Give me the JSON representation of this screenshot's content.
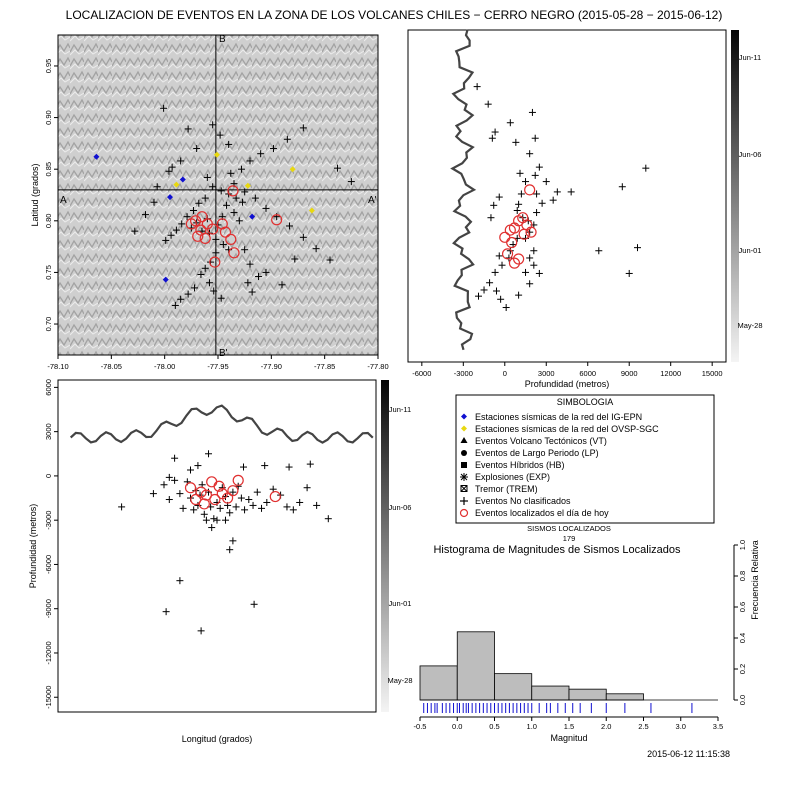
{
  "title": "LOCALIZACION DE EVENTOS EN LA ZONA DE LOS VOLCANES CHILES − CERRO NEGRO (2015-05-28 − 2015-06-12)",
  "timestamp": "2015-06-12 11:15:38",
  "colors": {
    "ig_station": "#1010d0",
    "ovsp_station": "#e8d810",
    "event": "#000000",
    "today": "#e03030",
    "profile": "#444444",
    "hist_bar": "#bdbdbd",
    "rug": "#1010d0"
  },
  "chart_data": [
    {
      "type": "scatter",
      "id": "map",
      "xlim": [
        -78.1,
        -77.8
      ],
      "ylim": [
        0.67,
        0.98
      ],
      "xticks": [
        "-78.10",
        "-78.05",
        "-78.00",
        "-77.95",
        "-77.90",
        "-77.85",
        "-77.80"
      ],
      "yticks": [
        "0.70",
        "0.75",
        "0.80",
        "0.85",
        "0.90",
        "0.95"
      ],
      "ylabel": "Latitud (grados)",
      "section_labels": {
        "A": "A",
        "A2": "A'",
        "B": "B",
        "B2": "B'"
      },
      "section_lines": {
        "lat": 0.83,
        "lon": -77.952
      },
      "ig_stations": [
        [
          -78.064,
          0.862
        ],
        [
          -77.995,
          0.823
        ],
        [
          -77.983,
          0.84
        ],
        [
          -77.918,
          0.804
        ],
        [
          -77.999,
          0.743
        ]
      ],
      "ovsp_stations": [
        [
          -77.951,
          0.864
        ],
        [
          -77.922,
          0.834
        ],
        [
          -77.88,
          0.85
        ],
        [
          -77.862,
          0.81
        ],
        [
          -77.989,
          0.835
        ]
      ],
      "events": [
        [
          -78.001,
          0.909
        ],
        [
          -77.978,
          0.889
        ],
        [
          -77.97,
          0.87
        ],
        [
          -77.96,
          0.842
        ],
        [
          -77.955,
          0.833
        ],
        [
          -77.947,
          0.829
        ],
        [
          -77.94,
          0.826
        ],
        [
          -77.933,
          0.822
        ],
        [
          -77.927,
          0.818
        ],
        [
          -77.962,
          0.822
        ],
        [
          -77.968,
          0.817
        ],
        [
          -77.973,
          0.81
        ],
        [
          -77.979,
          0.804
        ],
        [
          -77.984,
          0.797
        ],
        [
          -77.989,
          0.791
        ],
        [
          -77.994,
          0.786
        ],
        [
          -77.999,
          0.781
        ],
        [
          -77.965,
          0.79
        ],
        [
          -77.958,
          0.788
        ],
        [
          -77.952,
          0.782
        ],
        [
          -77.945,
          0.777
        ],
        [
          -77.94,
          0.772
        ],
        [
          -77.952,
          0.769
        ],
        [
          -77.957,
          0.76
        ],
        [
          -77.962,
          0.754
        ],
        [
          -77.966,
          0.748
        ],
        [
          -77.958,
          0.74
        ],
        [
          -77.954,
          0.732
        ],
        [
          -77.947,
          0.725
        ],
        [
          -77.972,
          0.735
        ],
        [
          -77.978,
          0.729
        ],
        [
          -77.985,
          0.724
        ],
        [
          -77.99,
          0.718
        ],
        [
          -77.87,
          0.89
        ],
        [
          -77.885,
          0.879
        ],
        [
          -77.898,
          0.87
        ],
        [
          -77.91,
          0.865
        ],
        [
          -77.92,
          0.858
        ],
        [
          -77.928,
          0.85
        ],
        [
          -77.938,
          0.846
        ],
        [
          -77.935,
          0.836
        ],
        [
          -77.925,
          0.828
        ],
        [
          -77.915,
          0.822
        ],
        [
          -77.905,
          0.812
        ],
        [
          -77.895,
          0.804
        ],
        [
          -77.883,
          0.795
        ],
        [
          -77.87,
          0.784
        ],
        [
          -77.858,
          0.773
        ],
        [
          -77.845,
          0.762
        ],
        [
          -77.838,
          0.851
        ],
        [
          -77.825,
          0.838
        ],
        [
          -77.878,
          0.763
        ],
        [
          -77.89,
          0.738
        ],
        [
          -77.905,
          0.75
        ],
        [
          -77.92,
          0.758
        ],
        [
          -77.925,
          0.772
        ],
        [
          -78.01,
          0.818
        ],
        [
          -78.018,
          0.806
        ],
        [
          -78.028,
          0.79
        ],
        [
          -77.94,
          0.874
        ],
        [
          -77.948,
          0.883
        ],
        [
          -77.955,
          0.893
        ],
        [
          -77.985,
          0.858
        ],
        [
          -77.993,
          0.852
        ],
        [
          -77.996,
          0.848
        ],
        [
          -78.007,
          0.833
        ],
        [
          -77.93,
          0.8
        ],
        [
          -77.935,
          0.808
        ],
        [
          -77.942,
          0.815
        ],
        [
          -77.96,
          0.802
        ],
        [
          -77.97,
          0.798
        ],
        [
          -77.975,
          0.793
        ],
        [
          -77.95,
          0.796
        ],
        [
          -77.946,
          0.804
        ],
        [
          -77.912,
          0.746
        ],
        [
          -77.922,
          0.74
        ],
        [
          -77.918,
          0.731
        ]
      ],
      "today_events": [
        [
          -77.965,
          0.804
        ],
        [
          -77.96,
          0.797
        ],
        [
          -77.971,
          0.8
        ],
        [
          -77.966,
          0.791
        ],
        [
          -77.955,
          0.792
        ],
        [
          -77.969,
          0.785
        ],
        [
          -77.962,
          0.783
        ],
        [
          -77.946,
          0.797
        ],
        [
          -77.938,
          0.782
        ],
        [
          -77.943,
          0.789
        ],
        [
          -77.935,
          0.769
        ],
        [
          -77.953,
          0.76
        ],
        [
          -77.895,
          0.801
        ],
        [
          -77.936,
          0.829
        ],
        [
          -77.975,
          0.797
        ]
      ]
    },
    {
      "type": "scatter",
      "id": "depth-vs-latitude",
      "xlim": [
        -7000,
        16000
      ],
      "xticks": [
        "-6000",
        "-3000",
        "0",
        "3000",
        "6000",
        "9000",
        "12000",
        "15000"
      ],
      "xlabel": "Profundidad (metros)",
      "date_scale": [
        "Jun-11",
        "Jun-06",
        "Jun-01",
        "May-28"
      ],
      "events": [
        [
          -2000,
          0.93
        ],
        [
          -1200,
          0.913
        ],
        [
          -900,
          0.88
        ],
        [
          -700,
          0.886
        ],
        [
          400,
          0.895
        ],
        [
          800,
          0.876
        ],
        [
          2000,
          0.905
        ],
        [
          2200,
          0.88
        ],
        [
          1800,
          0.865
        ],
        [
          2500,
          0.852
        ],
        [
          10200,
          0.851
        ],
        [
          8500,
          0.833
        ],
        [
          3800,
          0.828
        ],
        [
          4800,
          0.828
        ],
        [
          3500,
          0.82
        ],
        [
          1500,
          0.838
        ],
        [
          1200,
          0.826
        ],
        [
          1000,
          0.816
        ],
        [
          900,
          0.81
        ],
        [
          1300,
          0.803
        ],
        [
          1700,
          0.8
        ],
        [
          2100,
          0.796
        ],
        [
          1800,
          0.789
        ],
        [
          1500,
          0.783
        ],
        [
          900,
          0.783
        ],
        [
          600,
          0.777
        ],
        [
          400,
          0.771
        ],
        [
          300,
          0.764
        ],
        [
          2100,
          0.771
        ],
        [
          1800,
          0.764
        ],
        [
          2100,
          0.757
        ],
        [
          1500,
          0.75
        ],
        [
          -200,
          0.757
        ],
        [
          -400,
          0.766
        ],
        [
          -700,
          0.75
        ],
        [
          -1100,
          0.74
        ],
        [
          -600,
          0.732
        ],
        [
          -300,
          0.724
        ],
        [
          100,
          0.716
        ],
        [
          1000,
          0.728
        ],
        [
          1800,
          0.739
        ],
        [
          2500,
          0.749
        ],
        [
          -1500,
          0.733
        ],
        [
          -1900,
          0.727
        ],
        [
          6800,
          0.771
        ],
        [
          9000,
          0.749
        ],
        [
          -1000,
          0.803
        ],
        [
          -800,
          0.815
        ],
        [
          -400,
          0.823
        ],
        [
          2700,
          0.817
        ],
        [
          2300,
          0.808
        ],
        [
          2300,
          0.826
        ],
        [
          9600,
          0.774
        ],
        [
          1100,
          0.846
        ],
        [
          2200,
          0.844
        ],
        [
          3000,
          0.838
        ]
      ],
      "today_events": [
        [
          1800,
          0.83
        ],
        [
          1300,
          0.803
        ],
        [
          1000,
          0.8
        ],
        [
          1600,
          0.796
        ],
        [
          700,
          0.793
        ],
        [
          400,
          0.791
        ],
        [
          1900,
          0.789
        ],
        [
          0,
          0.784
        ],
        [
          1400,
          0.787
        ],
        [
          500,
          0.779
        ],
        [
          200,
          0.768
        ],
        [
          1000,
          0.763
        ],
        [
          700,
          0.759
        ]
      ]
    },
    {
      "type": "scatter",
      "id": "depth-vs-longitude",
      "ylim": [
        -16000,
        6500
      ],
      "yticks": [
        "6000",
        "3000",
        "0",
        "-3000",
        "-6000",
        "-9000",
        "-12000",
        "-15000"
      ],
      "xlabel": "Longitud (grados)",
      "ylabel": "Profundidad (metros)",
      "date_scale": [
        "Jun-11",
        "Jun-06",
        "Jun-01",
        "May-28"
      ],
      "events": [
        [
          -78.04,
          -2100
        ],
        [
          -78.01,
          -1200
        ],
        [
          -78.0,
          -600
        ],
        [
          -77.995,
          -1600
        ],
        [
          -77.99,
          -300
        ],
        [
          -77.985,
          -1200
        ],
        [
          -77.982,
          -2200
        ],
        [
          -77.978,
          -400
        ],
        [
          -77.975,
          -1500
        ],
        [
          -77.972,
          -2300
        ],
        [
          -77.97,
          -1000
        ],
        [
          -77.968,
          -2000
        ],
        [
          -77.966,
          -1300
        ],
        [
          -77.964,
          -600
        ],
        [
          -77.962,
          -2600
        ],
        [
          -77.958,
          -1100
        ],
        [
          -77.956,
          -2100
        ],
        [
          -77.953,
          -2900
        ],
        [
          -77.95,
          -1800
        ],
        [
          -77.947,
          -2200
        ],
        [
          -77.945,
          -800
        ],
        [
          -77.942,
          -1400
        ],
        [
          -77.94,
          -2000
        ],
        [
          -77.938,
          -2500
        ],
        [
          -77.935,
          -1100
        ],
        [
          -77.932,
          -2100
        ],
        [
          -77.93,
          -700
        ],
        [
          -77.927,
          -1500
        ],
        [
          -77.924,
          -2300
        ],
        [
          -77.92,
          -1600
        ],
        [
          -77.916,
          -2000
        ],
        [
          -77.912,
          -1100
        ],
        [
          -77.908,
          -2200
        ],
        [
          -77.903,
          -1800
        ],
        [
          -77.897,
          -900
        ],
        [
          -77.89,
          -1300
        ],
        [
          -77.884,
          -2100
        ],
        [
          -77.878,
          -2300
        ],
        [
          -77.872,
          -1800
        ],
        [
          -77.865,
          -800
        ],
        [
          -77.856,
          -2000
        ],
        [
          -77.845,
          -2900
        ],
        [
          -77.862,
          800
        ],
        [
          -77.882,
          600
        ],
        [
          -77.905,
          700
        ],
        [
          -77.925,
          600
        ],
        [
          -77.958,
          1500
        ],
        [
          -77.968,
          700
        ],
        [
          -77.975,
          400
        ],
        [
          -77.99,
          1200
        ],
        [
          -77.995,
          -100
        ],
        [
          -77.935,
          -4400
        ],
        [
          -77.938,
          -5000
        ],
        [
          -77.915,
          -8700
        ],
        [
          -77.985,
          -7100
        ],
        [
          -77.998,
          -9200
        ],
        [
          -77.965,
          -10500
        ],
        [
          -77.95,
          -3000
        ],
        [
          -77.96,
          -3000
        ],
        [
          -77.942,
          -3000
        ],
        [
          -77.955,
          -3500
        ]
      ],
      "today_events": [
        [
          -77.96,
          -1300
        ],
        [
          -77.952,
          -1600
        ],
        [
          -77.945,
          -1200
        ],
        [
          -77.965,
          -1100
        ],
        [
          -77.948,
          -700
        ],
        [
          -77.97,
          -1600
        ],
        [
          -77.94,
          -1500
        ],
        [
          -77.955,
          -400
        ],
        [
          -77.935,
          -1000
        ],
        [
          -77.93,
          -300
        ],
        [
          -77.895,
          -1400
        ],
        [
          -77.975,
          -800
        ],
        [
          -77.962,
          -1900
        ]
      ]
    },
    {
      "type": "bar",
      "id": "magnitude-histogram",
      "count_label": "SISMOS LOCALIZADOS",
      "count_value": "179",
      "title": "Histograma de Magnitudes de Sismos Localizados",
      "xlabel": "Magnitud",
      "ylabel": "Frecuencia Relativa",
      "xlim": [
        -0.5,
        3.5
      ],
      "ylim": [
        0,
        1.0
      ],
      "xticks": [
        "-0.5",
        "0.0",
        "0.5",
        "1.0",
        "1.5",
        "2.0",
        "2.5",
        "3.0",
        "3.5"
      ],
      "yticks": [
        "0.0",
        "0.2",
        "0.4",
        "0.6",
        "0.8",
        "1.0"
      ],
      "bins": [
        [
          -0.5,
          0.0
        ],
        [
          0.0,
          0.5
        ],
        [
          0.5,
          1.0
        ],
        [
          1.0,
          1.5
        ],
        [
          1.5,
          2.0
        ],
        [
          2.0,
          2.5
        ],
        [
          2.5,
          3.0
        ],
        [
          3.0,
          3.5
        ]
      ],
      "values": [
        0.22,
        0.44,
        0.17,
        0.09,
        0.07,
        0.04,
        0.0,
        0.0
      ],
      "rug": [
        -0.45,
        -0.4,
        -0.35,
        -0.3,
        -0.27,
        -0.2,
        -0.15,
        -0.1,
        -0.05,
        0.0,
        0.03,
        0.08,
        0.12,
        0.15,
        0.2,
        0.25,
        0.3,
        0.35,
        0.4,
        0.45,
        0.5,
        0.55,
        0.6,
        0.65,
        0.7,
        0.75,
        0.8,
        0.85,
        0.9,
        0.95,
        1.0,
        1.1,
        1.2,
        1.25,
        1.35,
        1.45,
        1.55,
        1.65,
        1.8,
        2.0,
        2.25,
        2.6,
        3.15
      ]
    }
  ],
  "legend": {
    "title": "SIMBOLOGIA",
    "items": [
      "Estaciones sísmicas de la red del IG-EPN",
      "Estaciones sísmicas de la red del OVSP-SGC",
      "Eventos Volcano Tectónicos (VT)",
      "Eventos de Largo Periodo (LP)",
      "Eventos Híbridos (HB)",
      "Explosiones (EXP)",
      "Tremor (TREM)",
      "Eventos No clasificados",
      "Eventos localizados el día de hoy"
    ]
  }
}
